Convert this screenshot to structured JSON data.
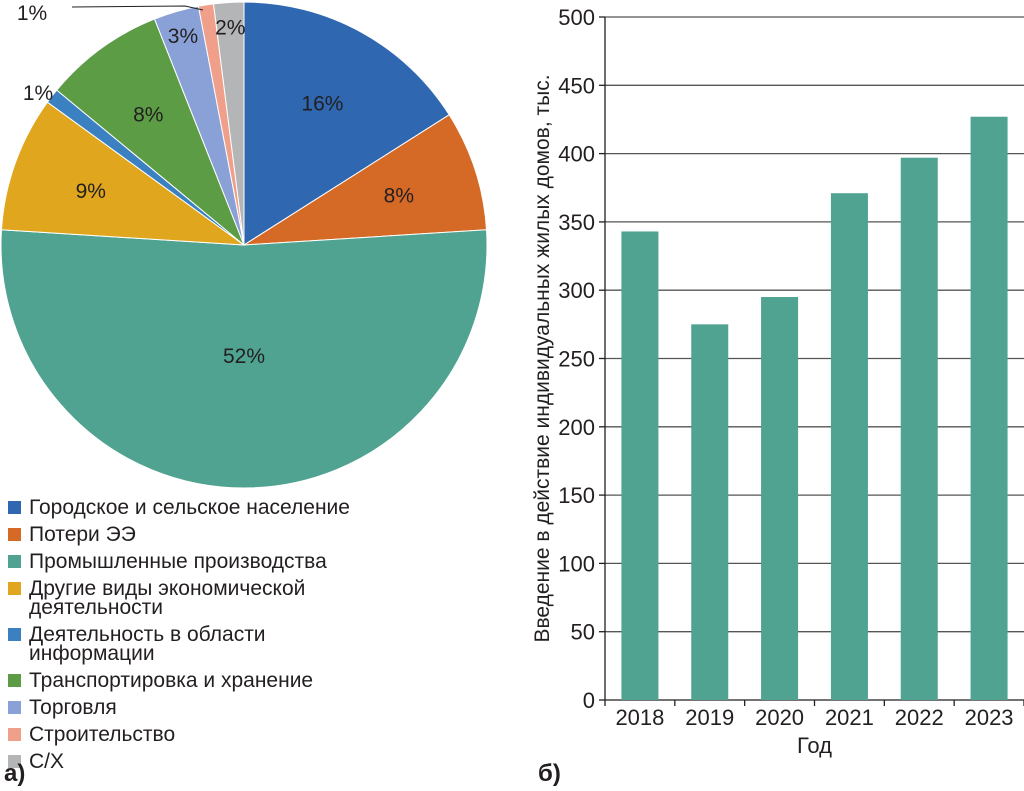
{
  "chart_data": [
    {
      "type": "pie",
      "panel_label": "а)",
      "slices": [
        {
          "label": "Городское и сельское население",
          "value": 16,
          "display": "16%",
          "color": "#2f67b1"
        },
        {
          "label": "Потери ЭЭ",
          "value": 8,
          "display": "8%",
          "color": "#d56a27"
        },
        {
          "label": "Промышленные производства",
          "value": 52,
          "display": "52%",
          "color": "#4fa390"
        },
        {
          "label": "Другие виды экономической деятельности",
          "value": 9,
          "display": "9%",
          "color": "#e0a61e"
        },
        {
          "label": "Деятельность в области информации",
          "value": 1,
          "display": "1%",
          "color": "#3b80c0"
        },
        {
          "label": "Транспортировка и хранение",
          "value": 8,
          "display": "8%",
          "color": "#5b9c44"
        },
        {
          "label": "Торговля",
          "value": 3,
          "display": "3%",
          "color": "#8aa1d8"
        },
        {
          "label": "Строительство",
          "value": 1,
          "display": "1%",
          "color": "#f0a08a"
        },
        {
          "label": "С/Х",
          "value": 2,
          "display": "2%",
          "color": "#b4b5b7"
        }
      ],
      "legend_position": "bottom"
    },
    {
      "type": "bar",
      "panel_label": "б)",
      "categories": [
        "2018",
        "2019",
        "2020",
        "2021",
        "2022",
        "2023"
      ],
      "values": [
        343,
        275,
        295,
        371,
        397,
        427
      ],
      "xlabel": "Год",
      "ylabel": "Введение в действие индивидуальных жилых домов, тыс.",
      "ylim": [
        0,
        500
      ],
      "yticks": [
        "0",
        "50",
        "100",
        "150",
        "200",
        "250",
        "300",
        "350",
        "400",
        "450",
        "500"
      ],
      "grid": true,
      "color": "#4fa390"
    }
  ]
}
